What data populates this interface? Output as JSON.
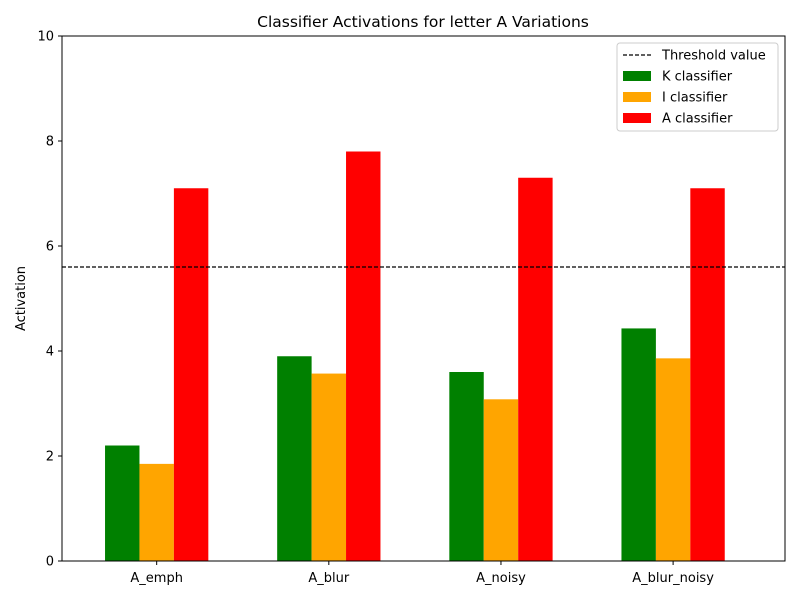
{
  "chart_data": {
    "type": "bar",
    "title": "Classifier Activations for letter A Variations",
    "xlabel": "",
    "ylabel": "Activation",
    "categories": [
      "A_emph",
      "A_blur",
      "A_noisy",
      "A_blur_noisy"
    ],
    "series": [
      {
        "name": "K classifier",
        "color": "#008000",
        "values": [
          2.2,
          3.9,
          3.6,
          4.43
        ]
      },
      {
        "name": "I classifier",
        "color": "#ffa500",
        "values": [
          1.85,
          3.57,
          3.08,
          3.86
        ]
      },
      {
        "name": "A classifier",
        "color": "#ff0000",
        "values": [
          7.1,
          7.8,
          7.3,
          7.1
        ]
      }
    ],
    "threshold": {
      "name": "Threshold value",
      "value": 5.6,
      "style": "dashed",
      "color": "#000000"
    },
    "ylim": [
      0,
      10
    ],
    "yticks": [
      0,
      2,
      4,
      6,
      8,
      10
    ],
    "grid": false,
    "legend_position": "top-right"
  }
}
